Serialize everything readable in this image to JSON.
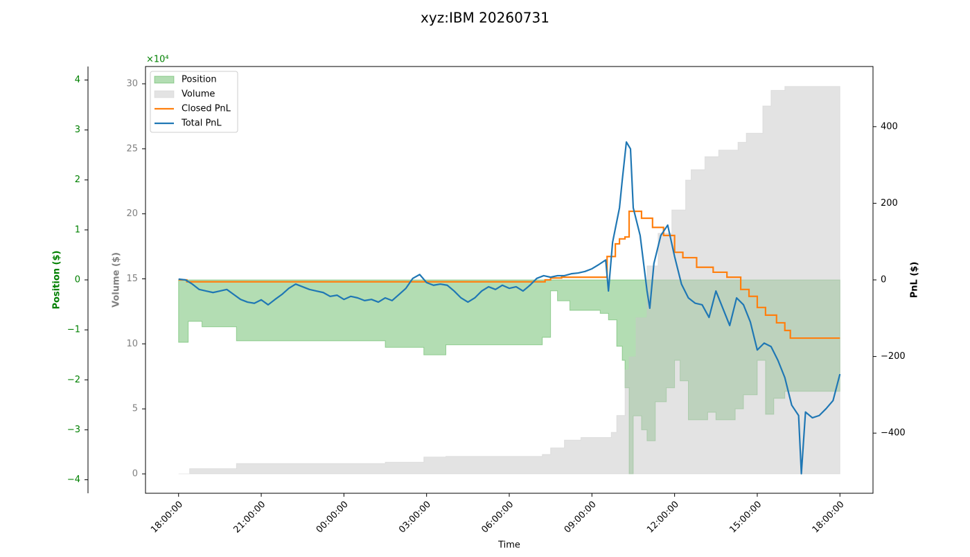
{
  "chart_data": {
    "type": "multi_axis_time_series",
    "title": "xyz:IBM 20260731",
    "xlabel": "Time",
    "xlim": [
      -1.2,
      25.2
    ],
    "xticks": [
      {
        "value": 0,
        "label": "18:00:00"
      },
      {
        "value": 3,
        "label": "21:00:00"
      },
      {
        "value": 6,
        "label": "00:00:00"
      },
      {
        "value": 9,
        "label": "03:00:00"
      },
      {
        "value": 12,
        "label": "06:00:00"
      },
      {
        "value": 15,
        "label": "09:00:00"
      },
      {
        "value": 18,
        "label": "12:00:00"
      },
      {
        "value": 21,
        "label": "15:00:00"
      },
      {
        "value": 24,
        "label": "18:00:00"
      }
    ],
    "legend": "upper left",
    "position_axis": {
      "label": "Position ($)",
      "offset_label": "×10⁴",
      "color": "#008000",
      "lim": [
        -4.27,
        4.27
      ],
      "ticks": [
        {
          "value": -4,
          "label": "−4"
        },
        {
          "value": -3,
          "label": "−3"
        },
        {
          "value": -2,
          "label": "−2"
        },
        {
          "value": -1,
          "label": "−1"
        },
        0,
        1,
        2,
        3,
        4
      ]
    },
    "volume_axis": {
      "label": "Volume ($)",
      "color": "#808080",
      "lim": [
        -1.49,
        31.33
      ],
      "ticks": [
        0,
        5,
        10,
        15,
        20,
        25,
        30
      ]
    },
    "pnl_axis": {
      "label": "PnL ($)",
      "color": "#000000",
      "lim": [
        -557,
        557
      ],
      "ticks": [
        {
          "value": -400,
          "label": "−400"
        },
        {
          "value": -200,
          "label": "−200"
        },
        0,
        200,
        400
      ]
    },
    "series": [
      {
        "name": "Position",
        "kind": "area",
        "axis": "position_axis",
        "color": "#2ca02c",
        "x": [
          0,
          0.35,
          0.85,
          2.1,
          7.5,
          8.9,
          9.7,
          13.2,
          13.5,
          13.75,
          14.2,
          15.3,
          15.6,
          15.9,
          16.1,
          16.2,
          16.35,
          16.5,
          16.8,
          17.0,
          17.3,
          17.7,
          18.0,
          18.2,
          18.5,
          19.2,
          19.5,
          20.2,
          20.5,
          21.0,
          21.3,
          21.6,
          22.0,
          24
        ],
        "values": [
          -1.25,
          -0.83,
          -0.94,
          -1.22,
          -1.35,
          -1.5,
          -1.3,
          -1.15,
          -0.22,
          -0.42,
          -0.61,
          -0.67,
          -0.8,
          -1.33,
          -1.61,
          -2.16,
          -3.88,
          -2.72,
          -3.0,
          -3.22,
          -2.44,
          -2.16,
          -1.61,
          -2.02,
          -2.8,
          -2.65,
          -2.8,
          -2.58,
          -2.3,
          -1.61,
          -2.69,
          -2.37,
          -2.23,
          -2.23
        ]
      },
      {
        "name": "Volume",
        "kind": "area",
        "axis": "volume_axis",
        "color": "#c8c8c8",
        "x": [
          0,
          0.4,
          2.1,
          7.5,
          8.9,
          9.7,
          13.2,
          13.5,
          14.0,
          14.6,
          15.7,
          15.9,
          16.2,
          16.35,
          16.6,
          17.0,
          17.4,
          17.9,
          18.4,
          18.6,
          19.1,
          19.6,
          20.3,
          20.6,
          21.2,
          21.5,
          22.0,
          24
        ],
        "values": [
          0,
          0.4,
          0.8,
          0.9,
          1.3,
          1.35,
          1.5,
          2.0,
          2.6,
          2.8,
          3.2,
          4.5,
          8,
          9,
          12,
          16,
          18.5,
          20.3,
          22.6,
          23.4,
          24.4,
          24.9,
          25.5,
          26.2,
          28.3,
          29.5,
          29.8,
          29.8
        ]
      },
      {
        "name": "Closed PnL",
        "kind": "step",
        "axis": "pnl_axis",
        "color": "#ff7f0e",
        "x": [
          0,
          0.3,
          13.3,
          13.5,
          13.9,
          15.55,
          15.85,
          16.0,
          16.2,
          16.35,
          16.8,
          17.2,
          17.6,
          18.0,
          18.3,
          18.8,
          19.4,
          19.9,
          20.4,
          20.7,
          21.0,
          21.3,
          21.7,
          22.0,
          22.2,
          24
        ],
        "values": [
          0,
          -5,
          0,
          5,
          7,
          61,
          94,
          107,
          112,
          179,
          161,
          137,
          116,
          72,
          58,
          33,
          20,
          7,
          -25,
          -43,
          -72,
          -92,
          -112,
          -132,
          -152,
          -152
        ]
      },
      {
        "name": "Total PnL",
        "kind": "line",
        "axis": "pnl_axis",
        "color": "#1f77b4",
        "x": [
          0,
          0.25,
          0.5,
          0.75,
          1,
          1.25,
          1.5,
          1.75,
          2,
          2.25,
          2.5,
          2.75,
          3,
          3.25,
          3.5,
          3.75,
          4,
          4.25,
          4.5,
          4.75,
          5,
          5.25,
          5.5,
          5.75,
          6,
          6.25,
          6.5,
          6.75,
          7,
          7.25,
          7.5,
          7.75,
          8,
          8.25,
          8.5,
          8.75,
          9,
          9.25,
          9.5,
          9.75,
          10,
          10.25,
          10.5,
          10.75,
          11,
          11.25,
          11.5,
          11.75,
          12,
          12.25,
          12.5,
          12.75,
          13,
          13.25,
          13.5,
          13.75,
          14,
          14.25,
          14.5,
          14.75,
          15,
          15.25,
          15.5,
          15.6,
          15.75,
          16.0,
          16.1,
          16.25,
          16.4,
          16.5,
          16.75,
          17.0,
          17.1,
          17.25,
          17.5,
          17.75,
          18.0,
          18.25,
          18.5,
          18.75,
          19.0,
          19.25,
          19.5,
          19.75,
          20.0,
          20.25,
          20.5,
          20.75,
          21.0,
          21.25,
          21.5,
          21.75,
          22.0,
          22.25,
          22.5,
          22.6,
          22.75,
          23.0,
          23.25,
          23.5,
          23.75,
          24.0
        ],
        "values": [
          2,
          0,
          -11,
          -25,
          -29,
          -33,
          -29,
          -25,
          -38,
          -51,
          -58,
          -61,
          -52,
          -65,
          -51,
          -38,
          -22,
          -11,
          -18,
          -25,
          -29,
          -33,
          -43,
          -40,
          -51,
          -43,
          -47,
          -54,
          -51,
          -58,
          -47,
          -54,
          -38,
          -22,
          4,
          14,
          -7,
          -14,
          -11,
          -14,
          -29,
          -47,
          -58,
          -47,
          -29,
          -18,
          -25,
          -14,
          -22,
          -18,
          -29,
          -14,
          4,
          11,
          7,
          11,
          11,
          16,
          18,
          22,
          29,
          40,
          52,
          -29,
          98,
          188,
          260,
          360,
          342,
          188,
          116,
          -29,
          -74,
          43,
          116,
          143,
          61,
          -11,
          -47,
          -61,
          -65,
          -98,
          -29,
          -74,
          -119,
          -47,
          -65,
          -110,
          -183,
          -165,
          -174,
          -210,
          -255,
          -327,
          -354,
          -506,
          -345,
          -360,
          -354,
          -336,
          -315,
          -246
        ]
      }
    ]
  }
}
